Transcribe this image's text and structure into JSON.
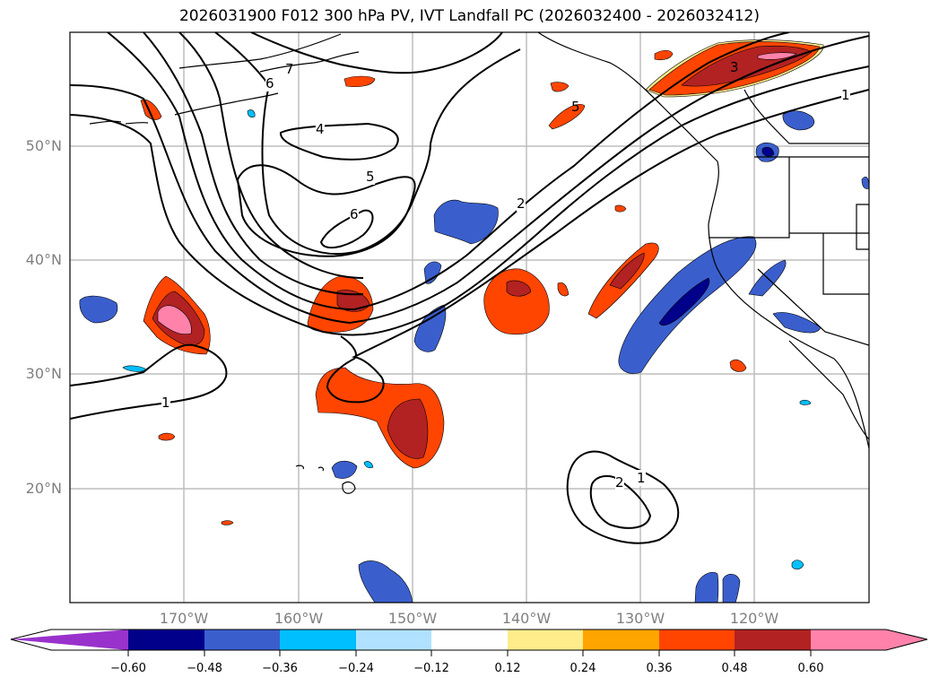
{
  "title": "2026031900 F012 300 hPa PV, IVT Landfall PC (2026032400 - 2026032412)",
  "map": {
    "lat_labels": [
      "50°N",
      "40°N",
      "30°N",
      "20°N"
    ],
    "lon_labels": [
      "170°W",
      "160°W",
      "150°W",
      "140°W",
      "130°W",
      "120°W"
    ],
    "contour_labels": [
      "7",
      "6",
      "4",
      "5",
      "6",
      "5",
      "2",
      "3",
      "1",
      "1",
      "2",
      "1"
    ]
  },
  "colorbar": {
    "colors": [
      "#9932CC",
      "#00008B",
      "#3A5FCD",
      "#00BFFF",
      "#B0E2FF",
      "#FFFFFF",
      "#FFEC8B",
      "#FFA500",
      "#FF4500",
      "#B22222",
      "#FF82AB"
    ],
    "ticks": [
      "−0.60",
      "−0.48",
      "−0.36",
      "−0.24",
      "−0.12",
      "0.12",
      "0.24",
      "0.36",
      "0.48",
      "0.60"
    ]
  }
}
